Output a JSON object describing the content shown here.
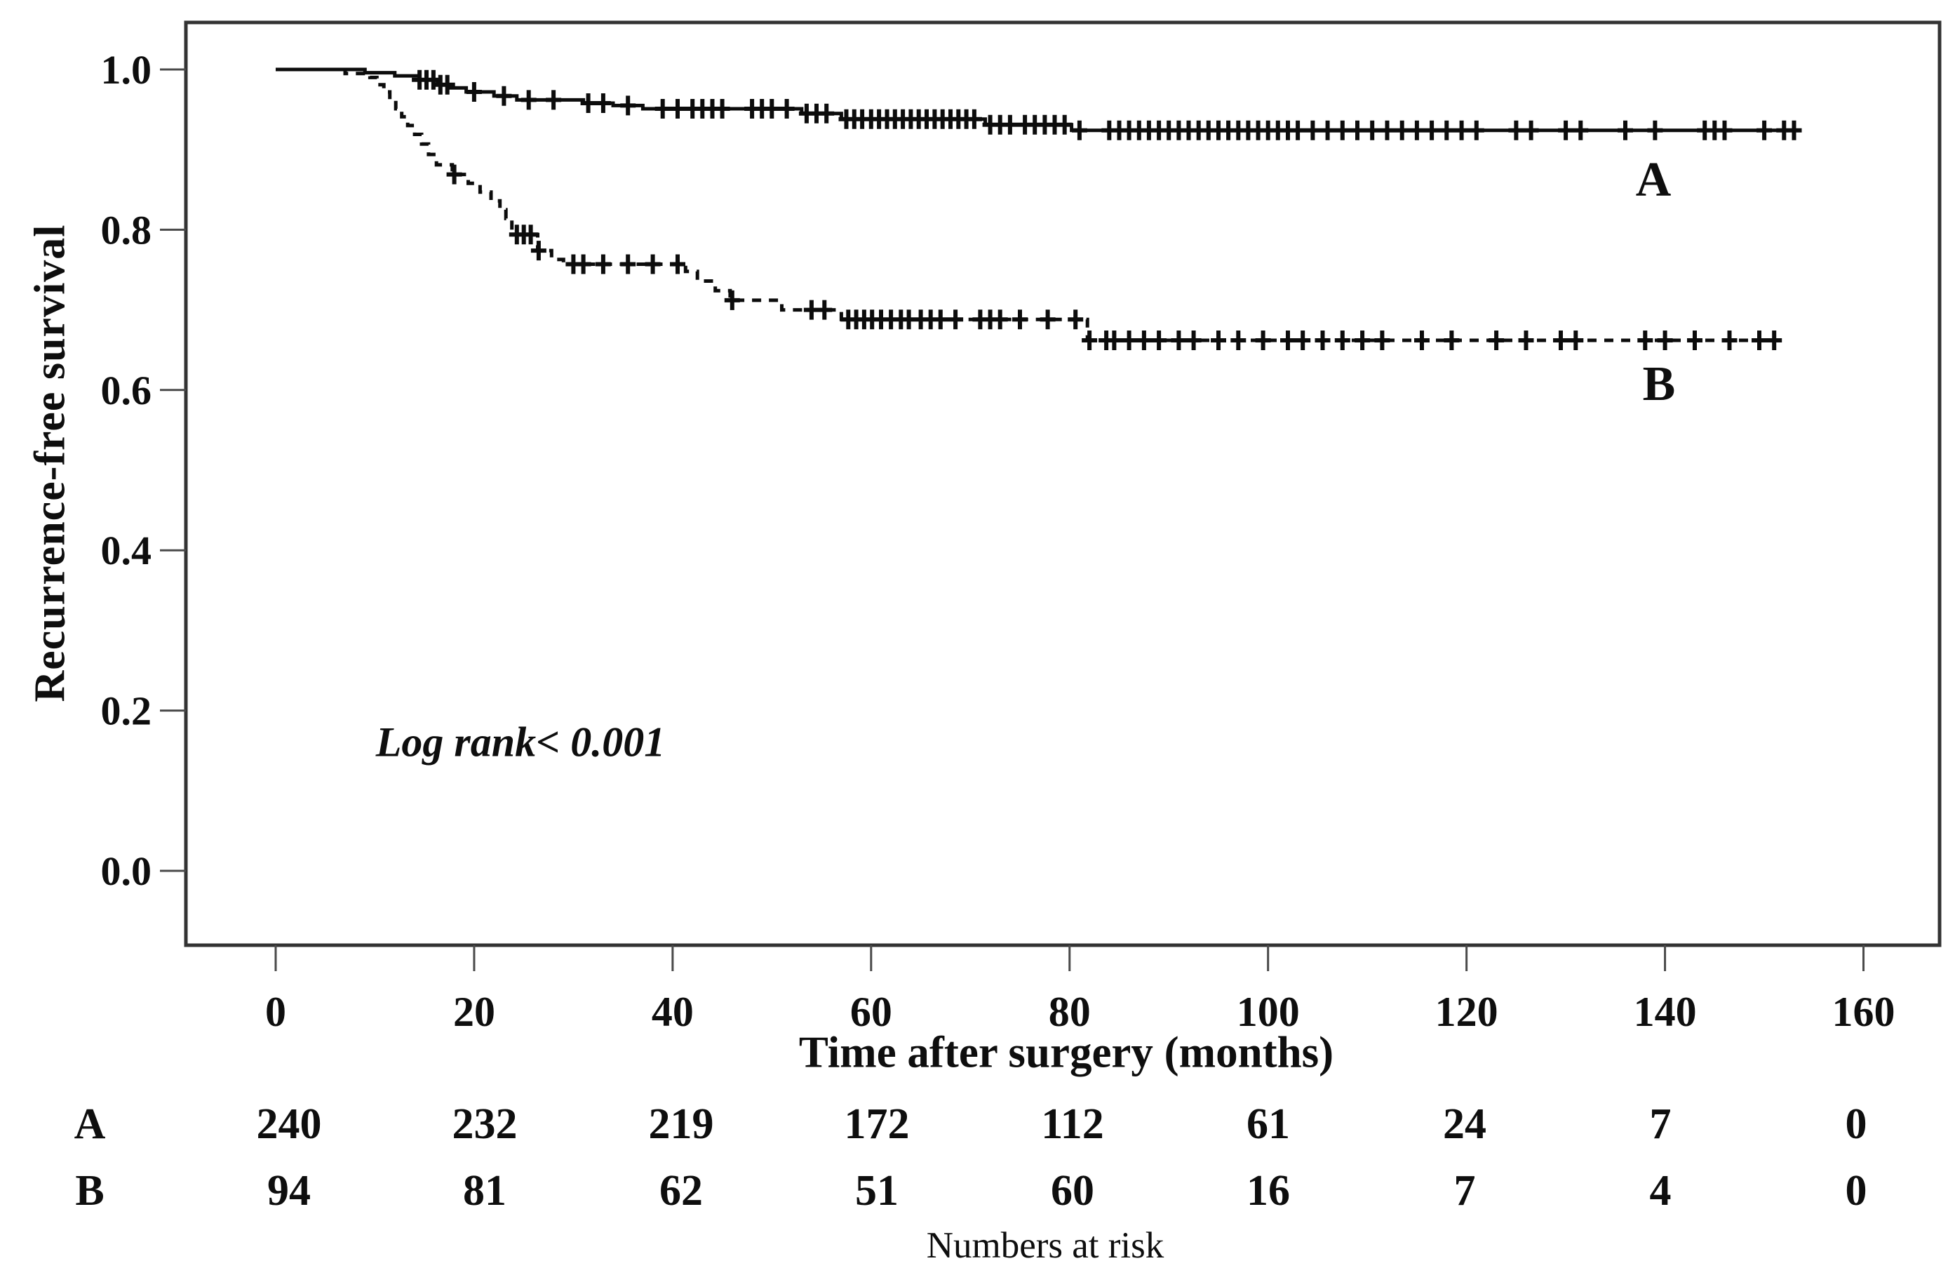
{
  "chart_data": {
    "type": "line",
    "subtype": "kaplan-meier-step",
    "title": "",
    "xlabel": "Time after surgery (months)",
    "ylabel": "Recurrence-free survival",
    "xlim": [
      -9,
      168
    ],
    "ylim": [
      -0.09,
      1.06
    ],
    "x_ticks": [
      0,
      20,
      40,
      60,
      80,
      100,
      120,
      140,
      160
    ],
    "y_ticks": [
      {
        "v": 1.0,
        "label": "1.0"
      },
      {
        "v": 0.8,
        "label": "0.8"
      },
      {
        "v": 0.6,
        "label": "0.6"
      },
      {
        "v": 0.4,
        "label": "0.4"
      },
      {
        "v": 0.2,
        "label": "0.2"
      },
      {
        "v": 0.0,
        "label": "0.0"
      }
    ],
    "grid": false,
    "legend_position": "inline-labels",
    "background_color": "#ffffff",
    "line_color": "#0c0c0c",
    "annotation": {
      "text": "Log rank< 0.001",
      "x_months": 24.7,
      "y_value": 0.16
    },
    "series": [
      {
        "name": "A",
        "style": "solid",
        "final_value": 0.924,
        "end_time": 153,
        "label_pos": {
          "x_months": 138.8,
          "y_value": 0.862
        },
        "steps": [
          [
            0,
            1.0
          ],
          [
            9,
            0.996
          ],
          [
            12,
            0.992
          ],
          [
            14.5,
            0.987
          ],
          [
            16.3,
            0.981
          ],
          [
            17.6,
            0.977
          ],
          [
            19.2,
            0.972
          ],
          [
            22,
            0.967
          ],
          [
            24.3,
            0.962
          ],
          [
            31,
            0.958
          ],
          [
            34,
            0.955
          ],
          [
            37,
            0.951
          ],
          [
            53,
            0.945
          ],
          [
            57,
            0.938
          ],
          [
            71.5,
            0.931
          ],
          [
            80.2,
            0.924
          ]
        ],
        "censor_times": [
          14.5,
          15.2,
          15.9,
          16.6,
          17.3,
          20,
          23,
          25.5,
          28,
          31.5,
          33,
          35.5,
          39,
          40.5,
          42,
          43,
          44,
          45,
          48,
          49,
          50,
          51.5,
          53.5,
          54.5,
          55.5,
          57.5,
          58.3,
          59.1,
          60,
          60.8,
          61.6,
          62.4,
          63.2,
          64,
          64.8,
          65.6,
          66.4,
          67.2,
          68,
          68.8,
          69.6,
          70.4,
          72,
          73,
          74,
          75.5,
          76.5,
          77.5,
          78.5,
          79.5,
          81,
          84,
          85,
          86,
          87,
          88,
          89,
          90,
          91,
          92,
          93,
          94,
          95,
          96,
          97,
          98,
          99,
          100,
          101,
          102,
          103,
          104.5,
          106,
          107.5,
          109,
          110.5,
          112,
          113.5,
          115,
          116.5,
          118,
          119.5,
          121,
          125,
          126.5,
          130,
          131.5,
          136,
          139,
          144,
          145,
          146,
          150,
          152,
          153
        ]
      },
      {
        "name": "B",
        "style": "dashed",
        "final_value": 0.662,
        "end_time": 151,
        "label_pos": {
          "x_months": 139.4,
          "y_value": 0.607
        },
        "steps": [
          [
            0,
            1.0
          ],
          [
            7,
            0.995
          ],
          [
            9.5,
            0.99
          ],
          [
            10.2,
            0.981
          ],
          [
            10.9,
            0.972
          ],
          [
            11.5,
            0.962
          ],
          [
            12.1,
            0.951
          ],
          [
            12.7,
            0.941
          ],
          [
            13.3,
            0.93
          ],
          [
            14,
            0.919
          ],
          [
            14.7,
            0.907
          ],
          [
            15.4,
            0.894
          ],
          [
            16.2,
            0.881
          ],
          [
            17.8,
            0.869
          ],
          [
            19.4,
            0.858
          ],
          [
            20.6,
            0.847
          ],
          [
            21.7,
            0.836
          ],
          [
            22.6,
            0.825
          ],
          [
            23.2,
            0.814
          ],
          [
            23.8,
            0.794
          ],
          [
            26.4,
            0.774
          ],
          [
            27.8,
            0.763
          ],
          [
            29,
            0.757
          ],
          [
            41.3,
            0.748
          ],
          [
            42.5,
            0.736
          ],
          [
            44.3,
            0.724
          ],
          [
            45.8,
            0.712
          ],
          [
            51,
            0.7
          ],
          [
            57,
            0.688
          ],
          [
            81.8,
            0.662
          ]
        ],
        "censor_times": [
          18,
          24.3,
          25,
          25.7,
          26.5,
          30,
          31,
          33,
          35.5,
          38,
          40.5,
          46,
          54,
          55.3,
          57.7,
          58.5,
          59.3,
          60.1,
          61,
          62,
          63,
          63.8,
          65,
          66,
          67,
          68.5,
          71,
          72,
          73,
          75,
          77.8,
          80.6,
          82,
          83.7,
          84.5,
          86,
          87.5,
          89,
          91,
          92.5,
          95,
          97,
          99.5,
          102,
          103.5,
          105.5,
          107.5,
          109.5,
          111.5,
          115.5,
          118.5,
          123,
          126,
          129.5,
          131,
          138,
          140,
          143,
          146.5,
          149.5,
          151
        ]
      }
    ]
  },
  "risk_table": {
    "title": "Numbers at risk",
    "time_points": [
      0,
      20,
      40,
      60,
      80,
      100,
      120,
      140,
      160
    ],
    "rows": [
      {
        "label": "A",
        "counts": [
          240,
          232,
          219,
          172,
          112,
          61,
          24,
          7,
          0
        ]
      },
      {
        "label": "B",
        "counts": [
          94,
          81,
          62,
          51,
          60,
          16,
          7,
          4,
          0
        ]
      }
    ]
  }
}
